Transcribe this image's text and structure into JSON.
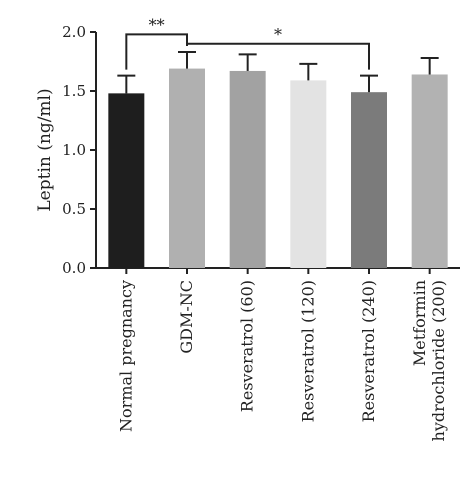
{
  "chart_data": {
    "type": "bar",
    "ylabel": "Leptin (ng/ml)",
    "ylim": [
      0,
      2.0
    ],
    "yticks": [
      "0.0",
      "0.5",
      "1.0",
      "1.5",
      "2.0"
    ],
    "categories": [
      [
        "Normal pregnancy"
      ],
      [
        "GDM-NC"
      ],
      [
        "Resveratrol (60)"
      ],
      [
        "Resveratrol (120)"
      ],
      [
        "Resveratrol (240)"
      ],
      [
        "Metformin",
        "hydrochloride (200)"
      ]
    ],
    "values": [
      1.48,
      1.69,
      1.67,
      1.59,
      1.49,
      1.64
    ],
    "errors": [
      0.15,
      0.14,
      0.14,
      0.14,
      0.14,
      0.14
    ],
    "colors": [
      "#1e1e1e",
      "#b0b0b0",
      "#a2a2a2",
      "#e3e3e3",
      "#7b7b7b",
      "#b2b2b2"
    ],
    "significance": [
      {
        "from": 0,
        "to": 1,
        "label": "**",
        "y": 1.98
      },
      {
        "from": 1,
        "to": 4,
        "label": "*",
        "y": 1.9
      }
    ],
    "grid": false,
    "legend": "none"
  }
}
